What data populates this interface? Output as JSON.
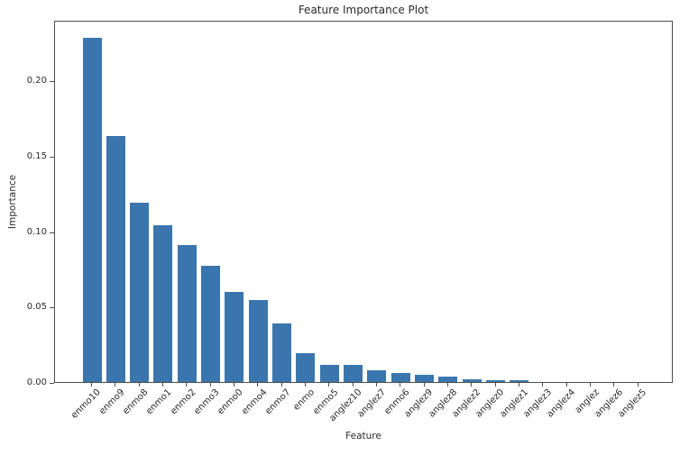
{
  "chart_data": {
    "type": "bar",
    "title": "Feature Importance Plot",
    "xlabel": "Feature",
    "ylabel": "Importance",
    "categories": [
      "enmo10",
      "enmo9",
      "enmo8",
      "enmo1",
      "enmo2",
      "enmo3",
      "enmo0",
      "enmo4",
      "enmo7",
      "enmo",
      "enmo5",
      "anglez10",
      "anglez7",
      "enmo6",
      "anglez9",
      "anglez8",
      "anglez2",
      "anglez0",
      "anglez1",
      "anglez3",
      "anglez4",
      "anglez",
      "anglez6",
      "anglez5"
    ],
    "values": [
      0.228,
      0.163,
      0.119,
      0.104,
      0.0905,
      0.077,
      0.0595,
      0.0545,
      0.039,
      0.019,
      0.0115,
      0.0112,
      0.0075,
      0.0062,
      0.0048,
      0.0035,
      0.0018,
      0.0013,
      0.0012,
      0.0,
      0.0,
      0.0,
      0.0,
      0.0
    ],
    "ylim": [
      0,
      0.24
    ],
    "yticks": [
      "0.00",
      "0.05",
      "0.10",
      "0.15",
      "0.20"
    ],
    "x_tick_rotation_deg": 45,
    "grid": false,
    "legend": "none",
    "bar_color": "#3a76ad",
    "axis_color": "#4d4d4d",
    "text_color": "#2b2b2b",
    "background_color": "#ffffff"
  }
}
